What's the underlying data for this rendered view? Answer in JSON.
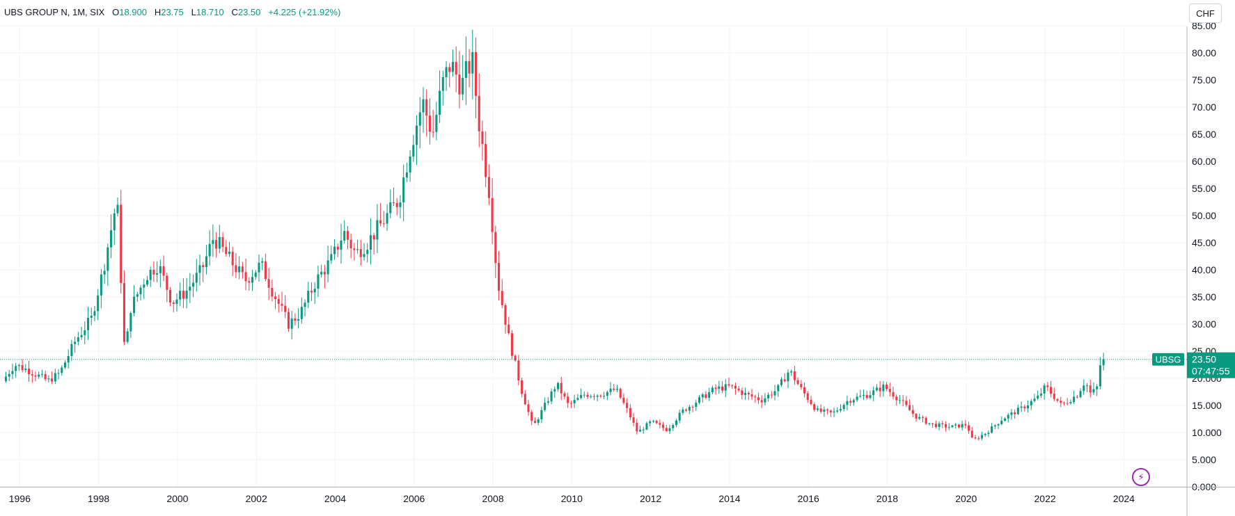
{
  "legend": {
    "symbol": "UBS GROUP N, 1M, SIX",
    "open_label": "O",
    "open": "18.900",
    "high_label": "H",
    "high": "23.75",
    "low_label": "L",
    "low": "18.710",
    "close_label": "C",
    "close": "23.50",
    "change": "+4.225 (+21.92%)"
  },
  "currency_button": "CHF",
  "last_price": {
    "ticker": "UBSG",
    "price": "23.50",
    "countdown": "07:47:55"
  },
  "flash_icon": "lightning-icon",
  "colors": {
    "up": "#089981",
    "down": "#f23645",
    "grid": "#f0f3fa",
    "axis": "#131722",
    "price_line": "#089981",
    "accent": "#9c27b0"
  },
  "chart_data": {
    "type": "candlestick",
    "interval": "1M",
    "y_ticks": [
      "0.000",
      "5.000",
      "10.000",
      "15.000",
      "20.000",
      "25.00",
      "30.00",
      "35.00",
      "40.00",
      "45.00",
      "50.00",
      "55.00",
      "60.00",
      "65.00",
      "70.00",
      "75.00",
      "80.00",
      "85.00"
    ],
    "x_ticks": [
      "1996",
      "1998",
      "2000",
      "2002",
      "2004",
      "2006",
      "2008",
      "2010",
      "2012",
      "2014",
      "2016",
      "2018",
      "2020",
      "2022",
      "2024"
    ],
    "ylim": [
      0,
      85
    ],
    "x_range": [
      1995.5,
      2025.6
    ],
    "last_close": 23.5,
    "anchors": [
      [
        1995.65,
        19.5
      ],
      [
        1995.95,
        22.5
      ],
      [
        1996.3,
        21.5
      ],
      [
        1996.8,
        19.5
      ],
      [
        1997.1,
        21
      ],
      [
        1997.5,
        27
      ],
      [
        1997.9,
        31
      ],
      [
        1998.2,
        40
      ],
      [
        1998.55,
        53
      ],
      [
        1998.75,
        24
      ],
      [
        1998.9,
        33
      ],
      [
        1999.3,
        39
      ],
      [
        1999.6,
        41
      ],
      [
        1999.95,
        34
      ],
      [
        2000.3,
        36
      ],
      [
        2000.7,
        40
      ],
      [
        2001.0,
        46
      ],
      [
        2001.4,
        42
      ],
      [
        2001.8,
        38
      ],
      [
        2002.2,
        41
      ],
      [
        2002.5,
        36
      ],
      [
        2002.9,
        30
      ],
      [
        2003.2,
        32
      ],
      [
        2003.6,
        38
      ],
      [
        2004.0,
        42
      ],
      [
        2004.3,
        47
      ],
      [
        2004.6,
        43
      ],
      [
        2004.9,
        45
      ],
      [
        2005.3,
        49
      ],
      [
        2005.7,
        53
      ],
      [
        2006.0,
        63
      ],
      [
        2006.3,
        71
      ],
      [
        2006.55,
        65
      ],
      [
        2006.8,
        74
      ],
      [
        2007.0,
        78
      ],
      [
        2007.3,
        74
      ],
      [
        2007.55,
        79
      ],
      [
        2007.75,
        66
      ],
      [
        2008.0,
        54
      ],
      [
        2008.2,
        38
      ],
      [
        2008.5,
        27
      ],
      [
        2008.8,
        18
      ],
      [
        2009.1,
        11
      ],
      [
        2009.4,
        15
      ],
      [
        2009.7,
        19
      ],
      [
        2010.0,
        15
      ],
      [
        2010.4,
        17
      ],
      [
        2010.8,
        17
      ],
      [
        2011.2,
        18
      ],
      [
        2011.5,
        14
      ],
      [
        2011.75,
        10
      ],
      [
        2012.1,
        12
      ],
      [
        2012.5,
        10.5
      ],
      [
        2012.9,
        14
      ],
      [
        2013.3,
        16
      ],
      [
        2013.7,
        18
      ],
      [
        2014.1,
        18.5
      ],
      [
        2014.5,
        17
      ],
      [
        2014.9,
        16
      ],
      [
        2015.3,
        18
      ],
      [
        2015.6,
        21.5
      ],
      [
        2015.9,
        18
      ],
      [
        2016.3,
        14
      ],
      [
        2016.7,
        13.5
      ],
      [
        2017.1,
        16
      ],
      [
        2017.6,
        17
      ],
      [
        2018.0,
        18.5
      ],
      [
        2018.4,
        16
      ],
      [
        2018.8,
        13
      ],
      [
        2019.2,
        11.5
      ],
      [
        2019.7,
        11
      ],
      [
        2020.1,
        11.5
      ],
      [
        2020.25,
        8.5
      ],
      [
        2020.6,
        10
      ],
      [
        2021.0,
        12.5
      ],
      [
        2021.5,
        14.5
      ],
      [
        2021.9,
        16.5
      ],
      [
        2022.1,
        18.5
      ],
      [
        2022.5,
        15
      ],
      [
        2022.9,
        17
      ],
      [
        2023.1,
        19.5
      ],
      [
        2023.25,
        17
      ],
      [
        2023.42,
        18.5
      ],
      [
        2023.5,
        23.5
      ]
    ]
  }
}
